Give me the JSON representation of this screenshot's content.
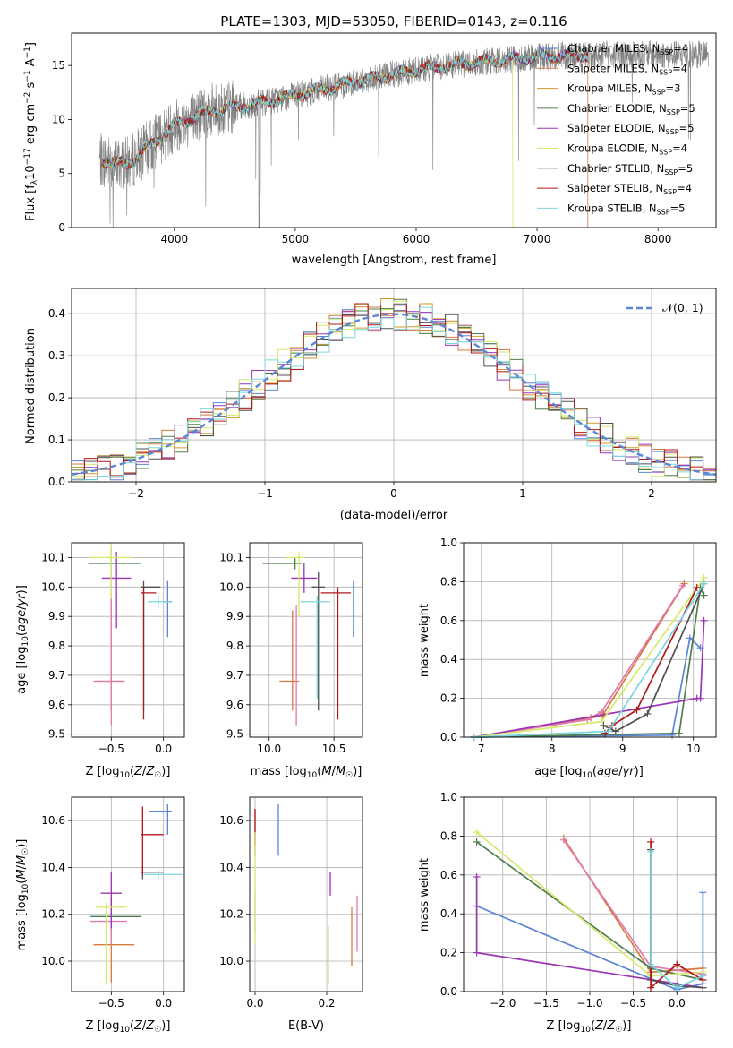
{
  "title": "PLATE=1303, MJD=53050, FIBERID=0143, z=0.116",
  "colors": {
    "Chabrier MILES": "#5b86d6",
    "Salpeter MILES": "#d87a3c",
    "Kroupa MILES": "#d39a2a",
    "Chabrier ELODIE": "#4f7d4f",
    "Salpeter ELODIE": "#9b34b5",
    "Kroupa ELODIE": "#d7e86a",
    "Chabrier STELIB": "#505050",
    "Salpeter STELIB": "#b01818",
    "Kroupa STELIB": "#79d6df",
    "data": "#808080",
    "pink": "#e07ab0"
  },
  "chart_data": [
    {
      "id": "spectrum",
      "type": "line",
      "xlabel": "wavelength [Angstrom, rest frame]",
      "ylabel": "Flux [f_λ 10⁻¹⁷ erg cm⁻² s⁻¹ A⁻¹]",
      "xlim": [
        3150,
        8480
      ],
      "ylim": [
        0,
        18
      ],
      "xticks": [
        4000,
        5000,
        6000,
        7000,
        8000
      ],
      "yticks": [
        0,
        5,
        10,
        15
      ],
      "legend_position": "upper-right",
      "legend": [
        {
          "label": "Chabrier MILES, N",
          "sub": "SSP",
          "tail": "=4"
        },
        {
          "label": "Salpeter MILES, N",
          "sub": "SSP",
          "tail": "=4"
        },
        {
          "label": "Kroupa MILES, N",
          "sub": "SSP",
          "tail": "=3"
        },
        {
          "label": "Chabrier ELODIE, N",
          "sub": "SSP",
          "tail": "=5"
        },
        {
          "label": "Salpeter ELODIE, N",
          "sub": "SSP",
          "tail": "=5"
        },
        {
          "label": "Kroupa ELODIE, N",
          "sub": "SSP",
          "tail": "=4"
        },
        {
          "label": "Chabrier STELIB, N",
          "sub": "SSP",
          "tail": "=5"
        },
        {
          "label": "Salpeter STELIB, N",
          "sub": "SSP",
          "tail": "=4"
        },
        {
          "label": "Kroupa STELIB, N",
          "sub": "SSP",
          "tail": "=5"
        }
      ],
      "continuum": [
        [
          3400,
          6.2
        ],
        [
          3600,
          5.8
        ],
        [
          3800,
          7.5
        ],
        [
          4000,
          9.5
        ],
        [
          4300,
          10.8
        ],
        [
          4600,
          11.3
        ],
        [
          5000,
          12.2
        ],
        [
          5500,
          13.5
        ],
        [
          6000,
          14.6
        ],
        [
          6500,
          15.3
        ],
        [
          7000,
          15.8
        ],
        [
          7400,
          16.0
        ]
      ],
      "data_range": [
        3380,
        8420
      ],
      "model_range": [
        3400,
        7420
      ]
    },
    {
      "id": "residual-histogram",
      "type": "bar",
      "xlabel": "(data-model)/error",
      "ylabel": "Normed distribution",
      "xlim": [
        -2.5,
        2.5
      ],
      "ylim": [
        0,
        0.46
      ],
      "xticks": [
        -2,
        -1,
        0,
        1,
        2
      ],
      "yticks": [
        0.0,
        0.1,
        0.2,
        0.3,
        0.4
      ],
      "legend": "𝒩(0, 1)",
      "legend_position": "upper-right",
      "bins": 50
    },
    {
      "id": "age-vs-Z",
      "type": "scatter",
      "xlabel": "Z [log₁₀(Z/Z☉)]",
      "ylabel": "age  [log₁₀(age/yr)]",
      "xlim": [
        -0.88,
        0.2
      ],
      "ylim": [
        9.49,
        10.15
      ],
      "xticks": [
        -0.5,
        0.0
      ],
      "yticks": [
        9.5,
        9.6,
        9.7,
        9.8,
        9.9,
        10.0,
        10.1
      ],
      "points": [
        {
          "series": "Chabrier MILES",
          "x": 0.04,
          "y": 9.95,
          "xerr": [
            0.04,
            0.04
          ],
          "yerr": [
            0.12,
            0.07
          ]
        },
        {
          "series": "Salpeter MILES",
          "x": -0.5,
          "y": 9.68,
          "xerr": [
            0.16,
            0.12
          ],
          "yerr": [
            0.1,
            0.42
          ]
        },
        {
          "series": "pink",
          "x": -0.5,
          "y": 9.68,
          "xerr": [
            0.17,
            0.13
          ],
          "yerr": [
            0.15,
            0.28
          ]
        },
        {
          "series": "Chabrier ELODIE",
          "x": -0.5,
          "y": 10.08,
          "xerr": [
            0.22,
            0.28
          ],
          "yerr": [
            0.02,
            0.05
          ]
        },
        {
          "series": "Salpeter ELODIE",
          "x": -0.45,
          "y": 10.03,
          "xerr": [
            0.14,
            0.14
          ],
          "yerr": [
            0.17,
            0.09
          ]
        },
        {
          "series": "Kroupa ELODIE",
          "x": -0.5,
          "y": 10.1,
          "xerr": [
            0.2,
            0.2
          ],
          "yerr": [
            0.14,
            0.05
          ]
        },
        {
          "series": "Chabrier STELIB",
          "x": -0.19,
          "y": 10.0,
          "xerr": [
            0.03,
            0.16
          ],
          "yerr": [
            0.42,
            0.02
          ]
        },
        {
          "series": "Salpeter STELIB",
          "x": -0.19,
          "y": 9.98,
          "xerr": [
            0.03,
            0.12
          ],
          "yerr": [
            0.43,
            0.02
          ]
        },
        {
          "series": "Kroupa STELIB",
          "x": -0.05,
          "y": 9.95,
          "xerr": [
            0.1,
            0.12
          ],
          "yerr": [
            0.02,
            0.02
          ]
        }
      ]
    },
    {
      "id": "age-vs-mass",
      "type": "scatter",
      "xlabel": "mass [log₁₀(M/M☉)]",
      "ylabel": "",
      "xlim": [
        9.85,
        10.72
      ],
      "ylim": [
        9.49,
        10.15
      ],
      "xticks": [
        10.0,
        10.5
      ],
      "yticks": [
        9.5,
        9.6,
        9.7,
        9.8,
        9.9,
        10.0,
        10.1
      ],
      "points": [
        {
          "series": "Chabrier MILES",
          "x": 10.65,
          "y": 9.95,
          "xerr": [
            0.0,
            0.0
          ],
          "yerr": [
            0.12,
            0.07
          ]
        },
        {
          "series": "Salpeter MILES",
          "x": 10.18,
          "y": 9.68,
          "xerr": [
            0.1,
            0.05
          ],
          "yerr": [
            0.1,
            0.24
          ]
        },
        {
          "series": "pink",
          "x": 10.21,
          "y": 9.68,
          "xerr": [
            0.0,
            0.0
          ],
          "yerr": [
            0.15,
            0.26
          ]
        },
        {
          "series": "Chabrier ELODIE",
          "x": 10.2,
          "y": 10.08,
          "xerr": [
            0.25,
            0.05
          ],
          "yerr": [
            0.02,
            0.02
          ]
        },
        {
          "series": "Salpeter ELODIE",
          "x": 10.27,
          "y": 10.03,
          "xerr": [
            0.1,
            0.1
          ],
          "yerr": [
            0.05,
            0.05
          ]
        },
        {
          "series": "Kroupa ELODIE",
          "x": 10.23,
          "y": 10.1,
          "xerr": [
            0.1,
            0.05
          ],
          "yerr": [
            0.2,
            0.02
          ]
        },
        {
          "series": "Chabrier STELIB",
          "x": 10.38,
          "y": 10.0,
          "xerr": [
            0.05,
            0.05
          ],
          "yerr": [
            0.42,
            0.05
          ]
        },
        {
          "series": "Salpeter STELIB",
          "x": 10.53,
          "y": 9.98,
          "xerr": [
            0.13,
            0.1
          ],
          "yerr": [
            0.43,
            0.02
          ]
        },
        {
          "series": "Kroupa STELIB",
          "x": 10.37,
          "y": 9.95,
          "xerr": [
            0.13,
            0.1
          ],
          "yerr": [
            0.33,
            0.02
          ]
        }
      ]
    },
    {
      "id": "mass-weight-vs-age",
      "type": "line",
      "xlabel": "age  [log₁₀(age/yr)]",
      "ylabel": "mass weight",
      "xlim": [
        6.75,
        10.32
      ],
      "ylim": [
        0,
        1.0
      ],
      "xticks": [
        7,
        8,
        9,
        10
      ],
      "yticks": [
        0.0,
        0.2,
        0.4,
        0.6,
        0.8,
        1.0
      ],
      "series": [
        {
          "name": "Chabrier MILES",
          "x": [
            6.9,
            9.7,
            9.95,
            10.1
          ],
          "y": [
            0.0,
            0.01,
            0.51,
            0.46
          ]
        },
        {
          "name": "Salpeter MILES",
          "x": [
            6.9,
            8.55,
            8.72,
            8.73,
            9.87
          ],
          "y": [
            0.0,
            0.1,
            0.11,
            0.12,
            0.79
          ]
        },
        {
          "name": "pink",
          "x": [
            6.9,
            8.5,
            8.7,
            9.85
          ],
          "y": [
            0.0,
            0.09,
            0.13,
            0.78
          ]
        },
        {
          "name": "Chabrier ELODIE",
          "x": [
            6.9,
            9.8,
            10.1,
            10.15
          ],
          "y": [
            0.0,
            0.02,
            0.77,
            0.73
          ]
        },
        {
          "name": "Salpeter ELODIE",
          "x": [
            6.9,
            10.05,
            10.1,
            10.15
          ],
          "y": [
            0.0,
            0.2,
            0.2,
            0.6
          ]
        },
        {
          "name": "Kroupa ELODIE",
          "x": [
            6.9,
            8.7,
            10.15
          ],
          "y": [
            0.0,
            0.08,
            0.82
          ]
        },
        {
          "name": "Chabrier STELIB",
          "x": [
            8.73,
            8.9,
            9.35,
            10.15
          ],
          "y": [
            0.06,
            0.03,
            0.12,
            0.79
          ]
        },
        {
          "name": "Salpeter STELIB",
          "x": [
            8.75,
            8.85,
            9.2,
            10.05
          ],
          "y": [
            0.02,
            0.06,
            0.14,
            0.77
          ]
        },
        {
          "name": "Kroupa STELIB",
          "x": [
            6.9,
            8.8,
            10.15
          ],
          "y": [
            0.0,
            0.03,
            0.79
          ]
        }
      ]
    },
    {
      "id": "mass-vs-Z",
      "type": "scatter",
      "xlabel": "Z [log₁₀(Z/Z☉)]",
      "ylabel": "mass [log₁₀(M/M☉)]",
      "xlim": [
        -0.88,
        0.2
      ],
      "ylim": [
        9.87,
        10.7
      ],
      "xticks": [
        -0.5,
        0.0
      ],
      "yticks": [
        10.0,
        10.2,
        10.4,
        10.6
      ],
      "points": [
        {
          "series": "Chabrier MILES",
          "x": 0.04,
          "y": 10.64,
          "xerr": [
            0.18,
            0.04
          ],
          "yerr": [
            0.1,
            0.03
          ]
        },
        {
          "series": "Salpeter MILES",
          "x": -0.5,
          "y": 10.07,
          "xerr": [
            0.17,
            0.22
          ],
          "yerr": [
            0.16,
            0.2
          ]
        },
        {
          "series": "pink",
          "x": -0.5,
          "y": 10.17,
          "xerr": [
            0.2,
            0.15
          ],
          "yerr": [
            0.1,
            0.1
          ]
        },
        {
          "series": "Chabrier ELODIE",
          "x": -0.5,
          "y": 10.19,
          "xerr": [
            0.2,
            0.29
          ],
          "yerr": [
            0.01,
            0.01
          ]
        },
        {
          "series": "Salpeter ELODIE",
          "x": -0.5,
          "y": 10.29,
          "xerr": [
            0.1,
            0.1
          ],
          "yerr": [
            0.15,
            0.09
          ]
        },
        {
          "series": "Kroupa ELODIE",
          "x": -0.55,
          "y": 10.23,
          "xerr": [
            0.1,
            0.2
          ],
          "yerr": [
            0.33,
            0.02
          ]
        },
        {
          "series": "Chabrier STELIB",
          "x": -0.2,
          "y": 10.38,
          "xerr": [
            0.02,
            0.2
          ],
          "yerr": [
            0.03,
            0.03
          ]
        },
        {
          "series": "Salpeter STELIB",
          "x": -0.2,
          "y": 10.54,
          "xerr": [
            0.02,
            0.2
          ],
          "yerr": [
            0.17,
            0.12
          ]
        },
        {
          "series": "Kroupa STELIB",
          "x": -0.05,
          "y": 10.37,
          "xerr": [
            0.14,
            0.23
          ],
          "yerr": [
            0.02,
            0.02
          ]
        }
      ]
    },
    {
      "id": "mass-vs-EBV",
      "type": "scatter",
      "xlabel": "E(B-V)",
      "ylabel": "",
      "xlim": [
        -0.015,
        0.3
      ],
      "ylim": [
        9.87,
        10.7
      ],
      "xticks": [
        0.0,
        0.2
      ],
      "yticks": [
        10.0,
        10.2,
        10.4,
        10.6
      ],
      "points": [
        {
          "series": "Chabrier MILES",
          "x": 0.065,
          "y": 10.56,
          "yerr": [
            0.11,
            0.11
          ]
        },
        {
          "series": "Salpeter MILES",
          "x": 0.0,
          "y": 10.55,
          "yerr": [
            0.1,
            0.1
          ]
        },
        {
          "series": "Salpeter STELIB",
          "x": 0.0,
          "y": 10.57,
          "yerr": [
            0.08,
            0.08
          ]
        },
        {
          "series": "Kroupa STELIB",
          "x": 0.0,
          "y": 10.2,
          "yerr": [
            0.08,
            0.09
          ]
        },
        {
          "series": "Kroupa ELODIE",
          "x": 0.0,
          "y": 10.25,
          "yerr": [
            0.18,
            0.3
          ]
        },
        {
          "series": "Salpeter ELODIE",
          "x": 0.21,
          "y": 10.33,
          "yerr": [
            0.05,
            0.05
          ]
        },
        {
          "series": "Kroupa ELODIE",
          "x": 0.205,
          "y": 10.05,
          "yerr": [
            0.15,
            0.1
          ]
        },
        {
          "series": "Salpeter MILES",
          "x": 0.27,
          "y": 10.13,
          "yerr": [
            0.15,
            0.1
          ]
        },
        {
          "series": "pink",
          "x": 0.285,
          "y": 10.16,
          "yerr": [
            0.12,
            0.12
          ]
        }
      ]
    },
    {
      "id": "mass-weight-vs-Z",
      "type": "line",
      "xlabel": "Z [log₁₀(Z/Z☉)]",
      "ylabel": "mass weight",
      "xlim": [
        -2.45,
        0.45
      ],
      "ylim": [
        0,
        1.0
      ],
      "xticks": [
        -2.0,
        -1.5,
        -1.0,
        -0.5,
        0.0
      ],
      "xtick_labels": [
        "−2.0",
        "−1.5",
        "−1.0",
        "−0.5",
        "0.0"
      ],
      "yticks": [
        0.0,
        0.2,
        0.4,
        0.6,
        0.8,
        1.0
      ],
      "series": [
        {
          "name": "Chabrier MILES",
          "x": [
            -2.3,
            0.0,
            0.3,
            0.3
          ],
          "y": [
            0.44,
            0.01,
            0.04,
            0.51
          ]
        },
        {
          "name": "Salpeter MILES",
          "x": [
            -1.3,
            -0.3,
            0.3
          ],
          "y": [
            0.79,
            0.1,
            0.12
          ]
        },
        {
          "name": "pink",
          "x": [
            -1.3,
            -0.3,
            0.3
          ],
          "y": [
            0.78,
            0.13,
            0.09
          ]
        },
        {
          "name": "Chabrier ELODIE",
          "x": [
            -2.3,
            -0.3,
            0.3
          ],
          "y": [
            0.77,
            0.12,
            0.06
          ]
        },
        {
          "name": "Salpeter ELODIE",
          "x": [
            -2.3,
            -2.3,
            -2.3,
            0.3
          ],
          "y": [
            0.59,
            0.44,
            0.2,
            0.02
          ]
        },
        {
          "name": "Kroupa ELODIE",
          "x": [
            -2.3,
            -0.3,
            0.3
          ],
          "y": [
            0.82,
            0.08,
            0.1
          ]
        },
        {
          "name": "Chabrier STELIB",
          "x": [
            -0.3,
            -0.3,
            0.0,
            0.3
          ],
          "y": [
            0.73,
            0.06,
            0.03,
            0.02
          ]
        },
        {
          "name": "Salpeter STELIB",
          "x": [
            -0.3,
            -0.3,
            0.0,
            0.3
          ],
          "y": [
            0.77,
            0.02,
            0.14,
            0.06
          ]
        },
        {
          "name": "Kroupa STELIB",
          "x": [
            -0.3,
            -0.3,
            0.0,
            0.3
          ],
          "y": [
            0.72,
            0.14,
            0.02,
            0.08
          ]
        }
      ]
    }
  ]
}
